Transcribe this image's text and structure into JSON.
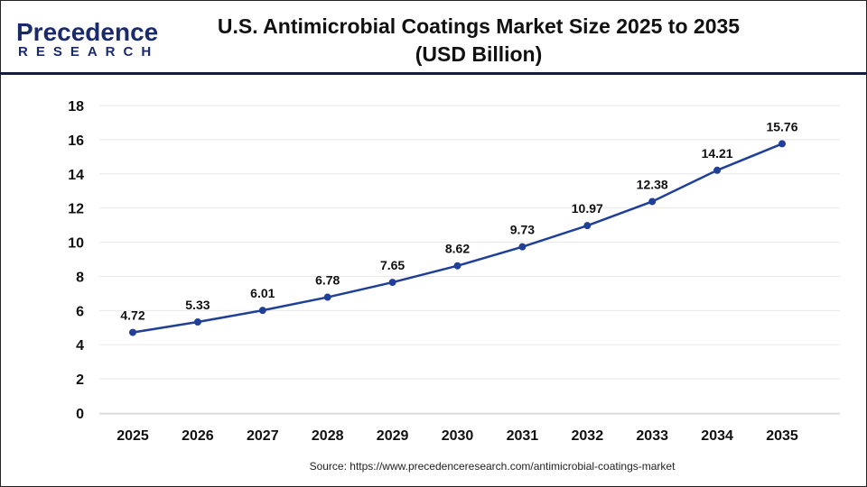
{
  "logo": {
    "line1": "Precedence",
    "line2": "RESEARCH"
  },
  "header": {
    "title_line1": "U.S. Antimicrobial Coatings Market Size 2025 to 2035",
    "title_line2": "(USD Billion)"
  },
  "source": "Source: https://www.precedenceresearch.com/antimicrobial-coatings-market",
  "chart_data": {
    "type": "line",
    "title": "U.S. Antimicrobial Coatings Market Size 2025 to 2035 (USD Billion)",
    "categories": [
      "2025",
      "2026",
      "2027",
      "2028",
      "2029",
      "2030",
      "2031",
      "2032",
      "2033",
      "2034",
      "2035"
    ],
    "values": [
      4.72,
      5.33,
      6.01,
      6.78,
      7.65,
      8.62,
      9.73,
      10.97,
      12.38,
      14.21,
      15.76
    ],
    "data_labels": [
      "4.72",
      "5.33",
      "6.01",
      "6.78",
      "7.65",
      "8.62",
      "9.73",
      "10.97",
      "12.38",
      "14.21",
      "15.76"
    ],
    "ylim": [
      0,
      18
    ],
    "yticks": [
      "0",
      "2",
      "4",
      "6",
      "8",
      "10",
      "12",
      "14",
      "16",
      "18"
    ],
    "grid": true,
    "line_color": "#1f3f99"
  }
}
